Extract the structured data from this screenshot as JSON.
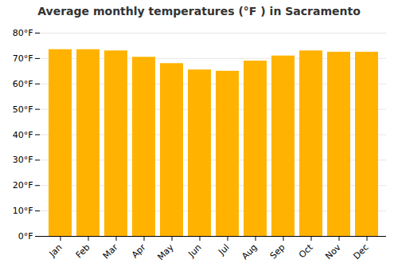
{
  "chart_data": {
    "type": "bar",
    "title": "Average monthly temperatures (°F ) in Sacramento",
    "categories": [
      "Jan",
      "Feb",
      "Mar",
      "Apr",
      "May",
      "Jun",
      "Jul",
      "Aug",
      "Sep",
      "Oct",
      "Nov",
      "Dec"
    ],
    "values": [
      73.5,
      73.5,
      73.0,
      70.5,
      68.0,
      65.5,
      65.0,
      69.0,
      71.0,
      73.0,
      72.5,
      72.5
    ],
    "color": "#FFB300",
    "ylim": [
      0,
      80
    ],
    "yticks": [
      {
        "value": 0,
        "label": "0°F"
      },
      {
        "value": 10,
        "label": "10°F"
      },
      {
        "value": 20,
        "label": "20°F"
      },
      {
        "value": 30,
        "label": "30°F"
      },
      {
        "value": 40,
        "label": "40°F"
      },
      {
        "value": 50,
        "label": "50°F"
      },
      {
        "value": 60,
        "label": "60°F"
      },
      {
        "value": 70,
        "label": "70°F"
      },
      {
        "value": 80,
        "label": "80°F"
      }
    ],
    "grid": true
  }
}
